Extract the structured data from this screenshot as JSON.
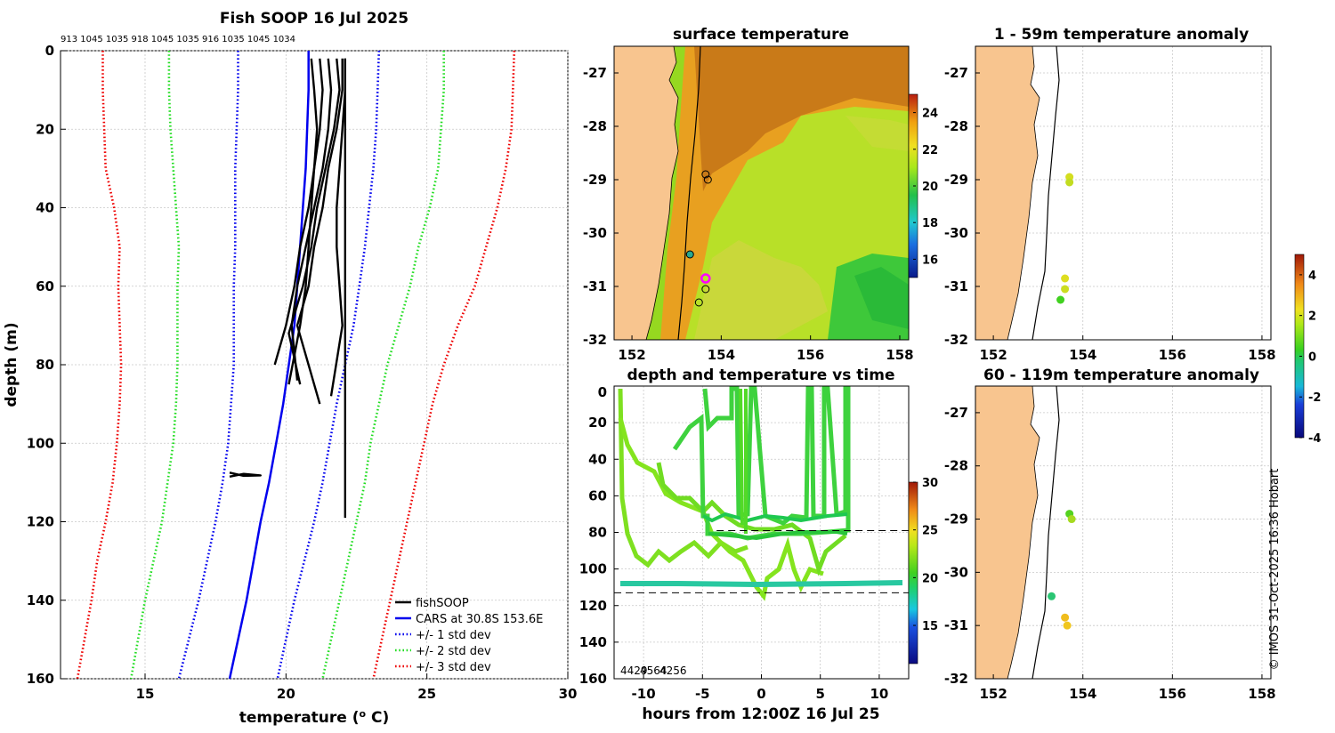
{
  "chart_data": [
    {
      "type": "line",
      "title": "Fish SOOP 16 Jul 2025",
      "header_numbers": [
        "913",
        "1045",
        "1035",
        "918",
        "1045",
        "1035",
        "916",
        "1035",
        "1045",
        "1034"
      ],
      "xlabel": "temperature (",
      "xlabel_sup": "o",
      "xlabel_end": " C)",
      "ylabel": "depth (m)",
      "xlim": [
        12,
        30
      ],
      "ylim": [
        0,
        160
      ],
      "xticks": [
        15,
        20,
        25,
        30
      ],
      "yticks": [
        0,
        20,
        40,
        60,
        80,
        100,
        120,
        140,
        160
      ],
      "depth": [
        0,
        10,
        20,
        30,
        40,
        50,
        60,
        70,
        80,
        90,
        100,
        110,
        120,
        130,
        140,
        150,
        160
      ],
      "series": [
        {
          "name": "CARS at 30.8S 153.6E",
          "color": "#0000ee",
          "style": "solid",
          "temps": [
            20.8,
            20.8,
            20.75,
            20.7,
            20.6,
            20.5,
            20.4,
            20.3,
            20.1,
            19.9,
            19.65,
            19.4,
            19.1,
            18.85,
            18.6,
            18.3,
            18.0
          ]
        },
        {
          "name": "+/- 1 std dev (low)",
          "color": "#0000ee",
          "style": "dotted",
          "temps": [
            18.3,
            18.3,
            18.25,
            18.2,
            18.2,
            18.2,
            18.15,
            18.15,
            18.15,
            18.05,
            17.95,
            17.75,
            17.5,
            17.2,
            16.9,
            16.55,
            16.2
          ]
        },
        {
          "name": "+/- 1 std dev (high)",
          "color": "#0000ee",
          "style": "dotted",
          "temps": [
            23.3,
            23.25,
            23.2,
            23.1,
            22.95,
            22.8,
            22.6,
            22.4,
            22.1,
            21.8,
            21.55,
            21.3,
            21.0,
            20.65,
            20.3,
            20.0,
            19.7
          ]
        },
        {
          "name": "+/- 2 std dev (low)",
          "color": "#22dd22",
          "style": "dotted",
          "temps": [
            15.85,
            15.85,
            15.9,
            16.0,
            16.1,
            16.2,
            16.15,
            16.15,
            16.15,
            16.1,
            16.0,
            15.8,
            15.6,
            15.3,
            15.0,
            14.75,
            14.5
          ]
        },
        {
          "name": "+/- 2 std dev (high)",
          "color": "#22dd22",
          "style": "dotted",
          "temps": [
            25.6,
            25.6,
            25.5,
            25.4,
            25.1,
            24.7,
            24.4,
            24.0,
            23.6,
            23.3,
            23.0,
            22.8,
            22.5,
            22.2,
            21.9,
            21.6,
            21.3
          ]
        },
        {
          "name": "+/- 3 std dev (low)",
          "color": "#ee0000",
          "style": "dotted",
          "temps": [
            13.5,
            13.5,
            13.55,
            13.6,
            13.9,
            14.1,
            14.05,
            14.1,
            14.15,
            14.1,
            14.0,
            13.85,
            13.6,
            13.3,
            13.1,
            12.85,
            12.6
          ]
        },
        {
          "name": "+/- 3 std dev (high)",
          "color": "#ee0000",
          "style": "dotted",
          "temps": [
            28.1,
            28.05,
            28.0,
            27.8,
            27.5,
            27.1,
            26.7,
            26.1,
            25.6,
            25.2,
            24.9,
            24.6,
            24.3,
            24.0,
            23.7,
            23.4,
            23.1
          ]
        }
      ],
      "fish_profiles": [
        {
          "temps": [
            20.9,
            21.0,
            21.1,
            21.0,
            20.9,
            20.8,
            20.7,
            20.5,
            20.1
          ],
          "depths": [
            2,
            10,
            20,
            30,
            40,
            50,
            60,
            70,
            85
          ]
        },
        {
          "temps": [
            21.2,
            21.3,
            21.2,
            21.0,
            20.8,
            20.5,
            20.3,
            20.0,
            19.6
          ],
          "depths": [
            2,
            10,
            20,
            30,
            40,
            50,
            60,
            70,
            80
          ]
        },
        {
          "temps": [
            21.5,
            21.6,
            21.5,
            21.3,
            21.0,
            20.7,
            20.4,
            20.2,
            20.4
          ],
          "depths": [
            2,
            10,
            20,
            30,
            40,
            50,
            60,
            70,
            84
          ]
        },
        {
          "temps": [
            21.8,
            21.9,
            21.7,
            21.4,
            21.1,
            20.9,
            20.6,
            20.1,
            20.5
          ],
          "depths": [
            2,
            10,
            20,
            30,
            40,
            50,
            60,
            72,
            85
          ]
        },
        {
          "temps": [
            22.0,
            22.0,
            21.8,
            21.5,
            21.3,
            21.0,
            20.8,
            20.4,
            21.2
          ],
          "depths": [
            2,
            10,
            20,
            30,
            40,
            50,
            60,
            70,
            90
          ]
        },
        {
          "temps": [
            22.1,
            22.1,
            22.0,
            21.9,
            21.8,
            21.8,
            21.9,
            22.0,
            21.6
          ],
          "depths": [
            2,
            10,
            20,
            30,
            40,
            50,
            60,
            70,
            88
          ]
        },
        {
          "temps": [
            22.1,
            22.1,
            22.1,
            22.1,
            22.1,
            22.1,
            22.1,
            22.1,
            22.1
          ],
          "depths": [
            2,
            10,
            20,
            40,
            60,
            80,
            100,
            110,
            119
          ]
        },
        {
          "temps": [
            18.0,
            18.5,
            19.1,
            18.5,
            18.0
          ],
          "depths": [
            107.5,
            108.3,
            108.2,
            107.8,
            108.5
          ]
        }
      ],
      "legend": [
        {
          "label": "fishSOOP",
          "color": "#000000",
          "style": "solid"
        },
        {
          "label": "CARS at 30.8S 153.6E",
          "color": "#0000ee",
          "style": "solid"
        },
        {
          "label": "+/- 1 std dev",
          "color": "#0000ee",
          "style": "dotted"
        },
        {
          "label": "+/- 2 std dev",
          "color": "#22dd22",
          "style": "dotted"
        },
        {
          "label": "+/- 3 std dev",
          "color": "#ee0000",
          "style": "dotted"
        }
      ]
    },
    {
      "type": "heatmap",
      "title": "surface temperature",
      "xlim": [
        151.6,
        158.2
      ],
      "ylim": [
        -32,
        -26.5
      ],
      "xticks": [
        152,
        154,
        156,
        158
      ],
      "yticks": [
        -27,
        -28,
        -29,
        -30,
        -31,
        -32
      ],
      "colorbar": {
        "range": [
          15,
          25
        ],
        "ticks": [
          16,
          18,
          20,
          22,
          24
        ]
      },
      "markers": [
        {
          "lon": 153.65,
          "lat": -28.9,
          "fill": "none"
        },
        {
          "lon": 153.7,
          "lat": -29.0,
          "fill": "none"
        },
        {
          "lon": 153.3,
          "lat": -30.4,
          "fill": "#2aa890"
        },
        {
          "lon": 153.65,
          "lat": -30.85,
          "fill": "magenta"
        },
        {
          "lon": 153.65,
          "lat": -31.05,
          "fill": "none"
        },
        {
          "lon": 153.5,
          "lat": -31.3,
          "fill": "none"
        }
      ]
    },
    {
      "type": "scatter",
      "title": "depth and temperature vs time",
      "xlabel": "hours from 12:00Z 16 Jul 25",
      "xlim": [
        -12.5,
        12.5
      ],
      "ylim": [
        0,
        160
      ],
      "xticks": [
        -10,
        -5,
        0,
        5,
        10
      ],
      "yticks": [
        0,
        20,
        40,
        60,
        80,
        100,
        120,
        140,
        160
      ],
      "dashed_depths": [
        79,
        113
      ],
      "bottom_labels": [
        "4429",
        "4564",
        "4256"
      ],
      "colorbar": {
        "range": [
          11,
          30
        ],
        "ticks": [
          15,
          20,
          25,
          30
        ]
      }
    },
    {
      "type": "scatter",
      "title": "1 - 59m temperature anomaly",
      "xlim": [
        151.6,
        158.2
      ],
      "ylim": [
        -32,
        -26.5
      ],
      "xticks": [
        152,
        154,
        156,
        158
      ],
      "yticks": [
        -27,
        -28,
        -29,
        -30,
        -31,
        -32
      ],
      "points": [
        {
          "lon": 153.7,
          "lat": -28.95,
          "anomaly": 1.7
        },
        {
          "lon": 153.7,
          "lat": -29.05,
          "anomaly": 1.5
        },
        {
          "lon": 153.6,
          "lat": -30.85,
          "anomaly": 1.8
        },
        {
          "lon": 153.6,
          "lat": -31.05,
          "anomaly": 1.6
        },
        {
          "lon": 153.5,
          "lat": -31.25,
          "anomaly": 0.1
        }
      ]
    },
    {
      "type": "scatter",
      "title": "60 - 119m temperature anomaly",
      "xlim": [
        151.6,
        158.2
      ],
      "ylim": [
        -32,
        -26.5
      ],
      "xticks": [
        152,
        154,
        156,
        158
      ],
      "yticks": [
        -27,
        -28,
        -29,
        -30,
        -31,
        -32
      ],
      "points": [
        {
          "lon": 153.7,
          "lat": -28.9,
          "anomaly": 0.3
        },
        {
          "lon": 153.75,
          "lat": -29.0,
          "anomaly": 1.2
        },
        {
          "lon": 153.3,
          "lat": -30.45,
          "anomaly": -0.9
        },
        {
          "lon": 153.6,
          "lat": -30.85,
          "anomaly": 2.8
        },
        {
          "lon": 153.65,
          "lat": -31.0,
          "anomaly": 2.6
        }
      ],
      "colorbar": {
        "range": [
          -4,
          5
        ],
        "ticks": [
          4,
          2,
          0,
          -2,
          -4
        ]
      }
    }
  ],
  "footer": {
    "credit": "© IMOS 31-Oct-2025 16:36 Hobart"
  }
}
